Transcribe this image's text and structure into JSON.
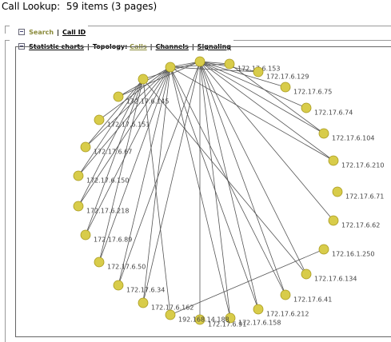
{
  "title": "Call Lookup:  59 items (3 pages)",
  "search_bar": {
    "search": "Search",
    "separator": "|",
    "call_id": "Call ID"
  },
  "tabs": {
    "statistic_charts": "Statistic charts",
    "separator": "|",
    "topology_label": "Topology:",
    "calls": "Calls",
    "channels": "Channels",
    "signaling": "Signaling"
  },
  "graph": {
    "nodes": [
      null,
      "172.17.6.153",
      "172.17.6.129",
      "172.17.6.75",
      "172.17.6.74",
      "172.17.6.104",
      "172.17.6.210",
      "172.17.6.71",
      "172.17.6.62",
      "172.16.1.250",
      "172.17.6.134",
      "172.17.6.41",
      "172.17.6.212",
      "172.17.6.158",
      "172.17.6.91",
      "192.168.14.188",
      "172.17.6.162",
      "172.17.6.34",
      "172.17.6.50",
      "172.17.6.89",
      "172.17.6.218",
      "172.17.6.150",
      "172.17.6.67",
      "172.17.6.151",
      "172.17.6.145",
      null,
      null
    ],
    "edges": [
      [
        0,
        1
      ],
      [
        0,
        2
      ],
      [
        0,
        3
      ],
      [
        0,
        4
      ],
      [
        0,
        5
      ],
      [
        0,
        6
      ],
      [
        0,
        8
      ],
      [
        0,
        10
      ],
      [
        0,
        11
      ],
      [
        0,
        12
      ],
      [
        0,
        13
      ],
      [
        0,
        14
      ],
      [
        0,
        16
      ],
      [
        0,
        17
      ],
      [
        0,
        24
      ],
      [
        0,
        25
      ],
      [
        0,
        26
      ],
      [
        26,
        11
      ],
      [
        26,
        12
      ],
      [
        26,
        13
      ],
      [
        26,
        16
      ],
      [
        26,
        17
      ],
      [
        26,
        18
      ],
      [
        26,
        19
      ],
      [
        26,
        20
      ],
      [
        26,
        21
      ],
      [
        26,
        22
      ],
      [
        26,
        23
      ],
      [
        26,
        24
      ],
      [
        26,
        1
      ],
      [
        26,
        2
      ],
      [
        26,
        6
      ],
      [
        25,
        18
      ],
      [
        25,
        19
      ],
      [
        25,
        20
      ],
      [
        25,
        21
      ],
      [
        25,
        22
      ],
      [
        25,
        10
      ],
      [
        25,
        15
      ],
      [
        15,
        9
      ],
      [
        1,
        5
      ]
    ]
  }
}
